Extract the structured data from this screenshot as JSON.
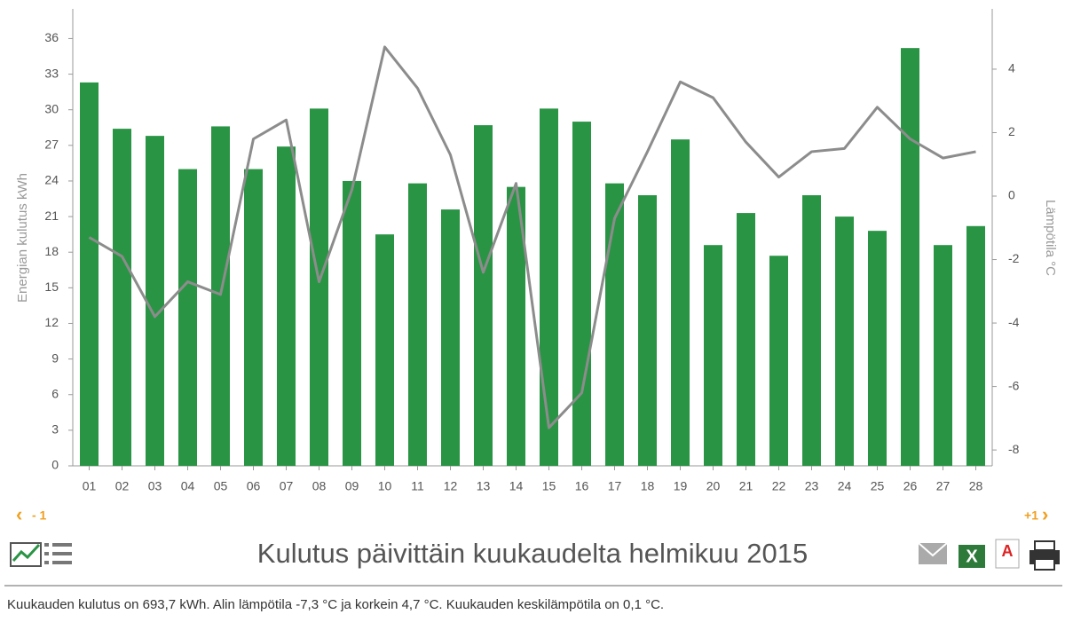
{
  "chart_data": {
    "type": "bar_line",
    "title": "Kulutus päivittäin kuukaudelta helmikuu 2015",
    "y_label": "Energian kulutus kWh",
    "y2_label": "Lämpötila °C",
    "categories": [
      "01",
      "02",
      "03",
      "04",
      "05",
      "06",
      "07",
      "08",
      "09",
      "10",
      "11",
      "12",
      "13",
      "14",
      "15",
      "16",
      "17",
      "18",
      "19",
      "20",
      "21",
      "22",
      "23",
      "24",
      "25",
      "26",
      "27",
      "28"
    ],
    "series": [
      {
        "name": "Energian kulutus",
        "type": "bar",
        "color": "#2a9445",
        "values": [
          32.3,
          28.4,
          27.8,
          25.0,
          28.6,
          25.0,
          26.9,
          30.1,
          24.0,
          19.5,
          23.8,
          21.6,
          28.7,
          23.5,
          30.1,
          29.0,
          23.8,
          22.8,
          27.5,
          18.6,
          21.3,
          17.7,
          22.8,
          21.0,
          19.8,
          35.2,
          18.6,
          20.2
        ]
      },
      {
        "name": "Lämpötila",
        "type": "line",
        "axis": "y2",
        "color": "#8c8c8c",
        "values": [
          -1.3,
          -1.9,
          -3.8,
          -2.7,
          -3.1,
          1.8,
          2.4,
          -2.7,
          0.2,
          4.7,
          3.4,
          1.3,
          -2.4,
          0.4,
          -7.3,
          -6.2,
          -0.7,
          1.4,
          3.6,
          3.1,
          1.7,
          0.6,
          1.4,
          1.5,
          2.8,
          1.8,
          1.2,
          1.4
        ]
      }
    ],
    "ylim": [
      0,
      38.5
    ],
    "yticks": [
      0,
      3,
      6,
      9,
      12,
      15,
      18,
      21,
      24,
      27,
      30,
      33,
      36
    ],
    "y2lim": [
      -8.5,
      5.9
    ],
    "y2ticks": [
      -8,
      -6,
      -4,
      -2,
      0,
      2,
      4
    ],
    "grid": false
  },
  "ui": {
    "prev": "- 1",
    "next": "+1",
    "summary": "Kuukauden kulutus on 693,7 kWh. Alin lämpötila -7,3 °C ja korkein 4,7 °C. Kuukauden keskilämpötila on 0,1 °C."
  }
}
